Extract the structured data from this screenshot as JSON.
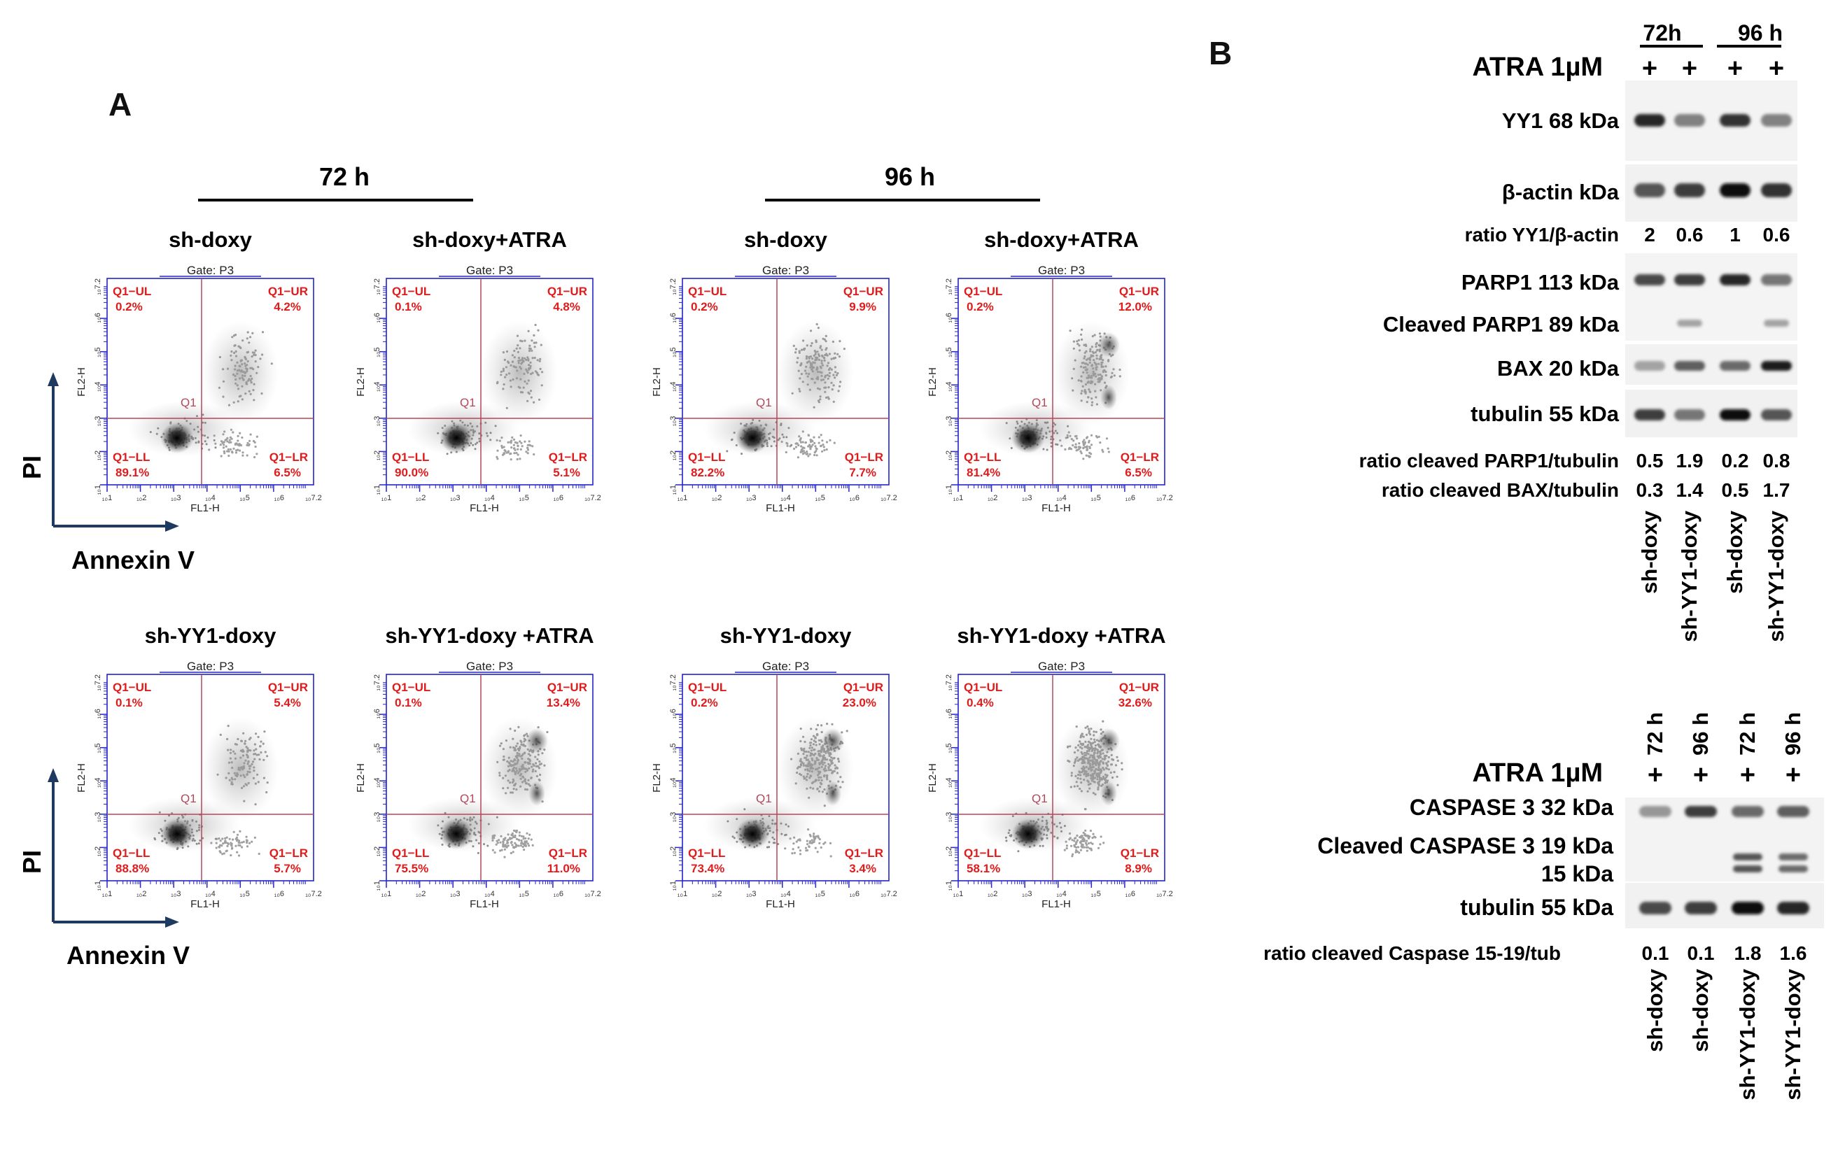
{
  "panel_a": {
    "letter": "A",
    "time_headers": [
      "72 h",
      "96 h"
    ],
    "axis_labels": {
      "y": "PI",
      "x": "Annexin V"
    },
    "gate": "Gate: P3",
    "fl_x": "FL1-H",
    "fl_y": "FL2-H",
    "q1": "Q1",
    "quadrant_labels": [
      "Q1−UL",
      "Q1−UR",
      "Q1−LL",
      "Q1−LR"
    ],
    "tick_labels": [
      "10^1",
      "10^2",
      "10^3",
      "10^4",
      "10^5",
      "10^6",
      "10^7.2"
    ],
    "plots": [
      {
        "title": "sh-doxy",
        "ul": "0.2%",
        "ur": "4.2%",
        "ll": "89.1%",
        "lr": "6.5%"
      },
      {
        "title": "sh-doxy+ATRA",
        "ul": "0.1%",
        "ur": "4.8%",
        "ll": "90.0%",
        "lr": "5.1%"
      },
      {
        "title": "sh-doxy",
        "ul": "0.2%",
        "ur": "9.9%",
        "ll": "82.2%",
        "lr": "7.7%"
      },
      {
        "title": "sh-doxy+ATRA",
        "ul": "0.2%",
        "ur": "12.0%",
        "ll": "81.4%",
        "lr": "6.5%"
      },
      {
        "title": "sh-YY1-doxy",
        "ul": "0.1%",
        "ur": "5.4%",
        "ll": "88.8%",
        "lr": "5.7%"
      },
      {
        "title": "sh-YY1-doxy +ATRA",
        "ul": "0.1%",
        "ur": "13.4%",
        "ll": "75.5%",
        "lr": "11.0%"
      },
      {
        "title": "sh-YY1-doxy",
        "ul": "0.2%",
        "ur": "23.0%",
        "ll": "73.4%",
        "lr": "3.4%"
      },
      {
        "title": "sh-YY1-doxy +ATRA",
        "ul": "0.4%",
        "ur": "32.6%",
        "ll": "58.1%",
        "lr": "8.9%"
      }
    ]
  },
  "panel_b": {
    "letter": "B",
    "top": {
      "time_groups": [
        "72h",
        "96 h"
      ],
      "treatment_label": "ATRA 1µM",
      "plus": [
        "+",
        "+",
        "+",
        "+"
      ],
      "rows": [
        {
          "label": "YY1 68 kDa",
          "intensity": [
            0.85,
            0.45,
            0.8,
            0.45
          ]
        },
        {
          "label": "β-actin kDa",
          "intensity": [
            0.65,
            0.75,
            0.95,
            0.8
          ]
        },
        {
          "label": "PARP1 113 kDa",
          "intensity": [
            0.7,
            0.75,
            0.85,
            0.5
          ]
        },
        {
          "label": "Cleaved PARP1 89 kDa",
          "intensity": [
            0.0,
            0.3,
            0.0,
            0.3
          ]
        },
        {
          "label": "BAX 20 kDa",
          "intensity": [
            0.3,
            0.6,
            0.55,
            0.9
          ]
        },
        {
          "label": "tubulin 55 kDa",
          "intensity": [
            0.75,
            0.5,
            0.95,
            0.65
          ]
        }
      ],
      "ratio_yy1": {
        "label": "ratio YY1/β-actin",
        "values": [
          "2",
          "0.6",
          "1",
          "0.6"
        ]
      },
      "ratio_parp": {
        "label": "ratio cleaved PARP1/tubulin",
        "values": [
          "0.5",
          "1.9",
          "0.2",
          "0.8"
        ]
      },
      "ratio_bax": {
        "label": "ratio cleaved BAX/tubulin",
        "values": [
          "0.3",
          "1.4",
          "0.5",
          "1.7"
        ]
      },
      "lanes": [
        "sh-doxy",
        "sh-YY1-doxy",
        "sh-doxy",
        "sh-YY1-doxy"
      ]
    },
    "bottom": {
      "time_labels": [
        "72 h",
        "96 h",
        "72 h",
        "96 h"
      ],
      "treatment_label": "ATRA 1µM",
      "plus": [
        "+",
        "+",
        "+",
        "+"
      ],
      "caspase_label": "CASPASE 3 32 kDa",
      "cleaved_label": "Cleaved CASPASE 3  19 kDa",
      "kda15_label": "15 kDa",
      "tubulin_label": "tubulin 55 kDa",
      "caspase_intensity": [
        0.35,
        0.75,
        0.55,
        0.6
      ],
      "cleaved_intensity": [
        0.0,
        0.0,
        0.65,
        0.55
      ],
      "tubulin_intensity": [
        0.7,
        0.75,
        0.95,
        0.85
      ],
      "ratio": {
        "label": "ratio cleaved Caspase 15-19/tub",
        "values": [
          "0.1",
          "0.1",
          "1.8",
          "1.6"
        ]
      },
      "lanes": [
        "sh-doxy",
        "sh-doxy",
        "sh-YY1-doxy",
        "sh-YY1-doxy"
      ]
    }
  }
}
